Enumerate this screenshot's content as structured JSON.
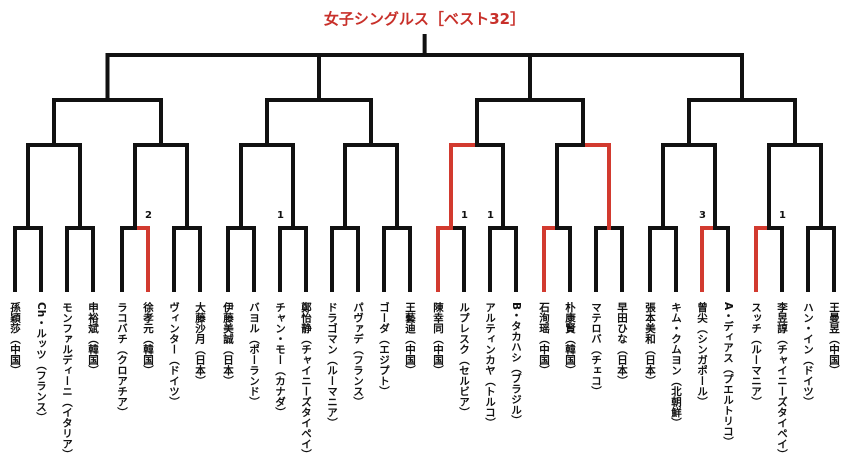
{
  "title": "女子シングルス［ベスト32］",
  "colors": {
    "winner_line": "#d23a2f",
    "line": "#111111",
    "title": "#c8302a"
  },
  "players": [
    "孫穎莎（中国）",
    "Ch・ルッツ（フランス）",
    "モンファルディーニ（イタリア）",
    "申裕斌（韓国）",
    "ラコバチ（クロアチア）",
    "徐孝元（韓国）",
    "ヴィンター（ドイツ）",
    "大藤沙月（日本）",
    "伊藤美誠（日本）",
    "バヨル（ポーランド）",
    "チャン・モー（カナダ）",
    "鄭怡静（チャイニーズタイペイ）",
    "ドラゴマン（ルーマニア）",
    "パヴァデ（フランス）",
    "ゴーダ（エジプト）",
    "王藝迪（中国）",
    "陳幸同（中国）",
    "ルプレスク（セルビア）",
    "アルティンカヤ（トルコ）",
    "B・タカハシ（ブラジル）",
    "石洵瑶（中国）",
    "朴康賢（韓国）",
    "マテロバ（チェコ）",
    "早田ひな（日本）",
    "張本美和（日本）",
    "キム・クムヨン（北朝鮮）",
    "曾尖（シンガポール）",
    "A・ディアス（プエルトリコ）",
    "スッチ（ルーマニア）",
    "李昱諄（チャイニーズタイペイ）",
    "ハン・イン（ドイツ）",
    "王曼昱（中国）"
  ],
  "rounds": [
    [
      null,
      null,
      null,
      null,
      1,
      null,
      null,
      null,
      null,
      null,
      null,
      1,
      null,
      null,
      null,
      1,
      0,
      null,
      null,
      1,
      0,
      null,
      null,
      null,
      null,
      null,
      0,
      null,
      0,
      null,
      null,
      null
    ],
    [
      null,
      0,
      null,
      null,
      null,
      1,
      null,
      1,
      0,
      null,
      1,
      null,
      null,
      null,
      null,
      null
    ],
    [
      null,
      null,
      null,
      null,
      null,
      null,
      null,
      null
    ],
    [
      null,
      null,
      null,
      null
    ],
    [
      null,
      null
    ]
  ],
  "seeds": [
    {
      "player": 5,
      "label": "2"
    },
    {
      "player": 10,
      "label": "1"
    },
    {
      "player": 17,
      "label": "1"
    },
    {
      "player": 18,
      "label": "1"
    },
    {
      "player": 26,
      "label": "3"
    },
    {
      "player": 29,
      "label": "1"
    }
  ]
}
